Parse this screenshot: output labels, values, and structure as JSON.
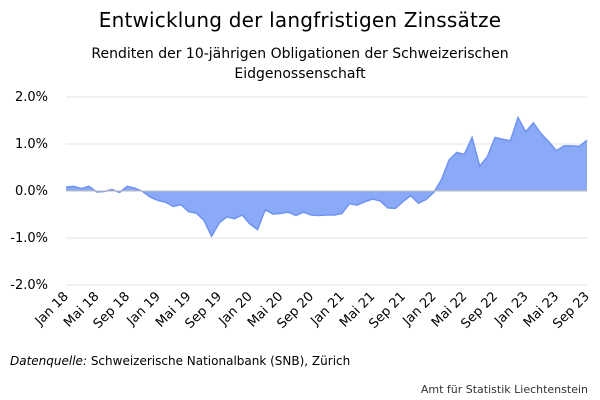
{
  "chart_data": {
    "type": "area",
    "title": "Entwicklung der langfristigen Zinssätze",
    "subtitle": "Renditen der 10-jährigen Obligationen der Schweizerischen Eidgenossenschaft",
    "x_labels": [
      "Jan 18",
      "Mai 18",
      "Sep 18",
      "Jan 19",
      "Mai 19",
      "Sep 19",
      "Jan 20",
      "Mai 20",
      "Sep 20",
      "Jan 21",
      "Mai 21",
      "Sep 21",
      "Jan 22",
      "Mai 22",
      "Sep 22",
      "Jan 23",
      "Mai 23",
      "Sep 23"
    ],
    "y_ticks": [
      "2.0%",
      "1.0%",
      "0.0%",
      "-1.0%",
      "-2.0%"
    ],
    "ylim": [
      -2.0,
      2.0
    ],
    "grid": true,
    "color": "#8aaaf8",
    "series": [
      {
        "values": [
          0.08,
          0.1,
          0.05,
          0.1,
          -0.02,
          -0.01,
          0.03,
          -0.03,
          0.1,
          0.06,
          -0.01,
          -0.13,
          -0.2,
          -0.24,
          -0.33,
          -0.29,
          -0.44,
          -0.47,
          -0.62,
          -0.96,
          -0.68,
          -0.55,
          -0.59,
          -0.51,
          -0.7,
          -0.82,
          -0.4,
          -0.49,
          -0.48,
          -0.45,
          -0.52,
          -0.45,
          -0.51,
          -0.52,
          -0.51,
          -0.51,
          -0.48,
          -0.27,
          -0.3,
          -0.23,
          -0.17,
          -0.21,
          -0.36,
          -0.37,
          -0.22,
          -0.1,
          -0.26,
          -0.18,
          -0.03,
          0.24,
          0.66,
          0.82,
          0.78,
          1.14,
          0.53,
          0.73,
          1.14,
          1.1,
          1.07,
          1.56,
          1.26,
          1.45,
          1.22,
          1.05,
          0.86,
          0.96,
          0.96,
          0.95,
          1.08
        ]
      }
    ]
  },
  "source": {
    "label": "Datenquelle:",
    "text": " Schweizerische Nationalbank (SNB), Zürich"
  },
  "credit": "Amt für Statistik Liechtenstein"
}
